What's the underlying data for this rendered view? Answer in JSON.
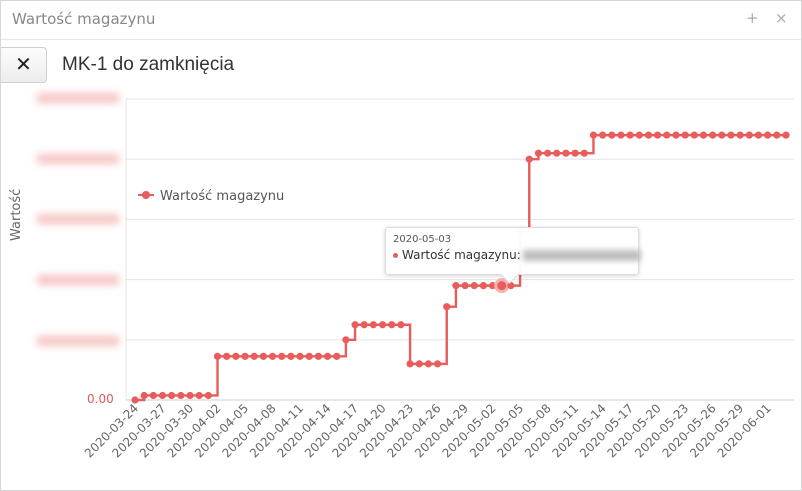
{
  "window": {
    "title": "Wartość magazynu",
    "maximize_icon": "+",
    "close_icon": "×"
  },
  "toolbar": {
    "close_label": "✕",
    "report_title": "MK-1 do zamknięcia"
  },
  "tooltip": {
    "date": "2020-05-03",
    "label": "Wartość magazynu:"
  },
  "colors": {
    "series": "#e85c5c",
    "grid": "#e5e5e5"
  },
  "chart_data": {
    "type": "line",
    "step": true,
    "title": "",
    "xlabel": "",
    "ylabel": "Wartość",
    "legend": {
      "entry": "Wartość magazynu",
      "placement": "left-middle"
    },
    "y_tick_labels": [
      "0.00"
    ],
    "x_tick_labels": [
      "2020-03-24",
      "2020-03-27",
      "2020-03-30",
      "2020-04-02",
      "2020-04-05",
      "2020-04-08",
      "2020-04-11",
      "2020-04-14",
      "2020-04-17",
      "2020-04-20",
      "2020-04-23",
      "2020-04-26",
      "2020-04-29",
      "2020-05-02",
      "2020-05-05",
      "2020-05-08",
      "2020-05-11",
      "2020-05-14",
      "2020-05-17",
      "2020-05-20",
      "2020-05-23",
      "2020-05-26",
      "2020-05-29",
      "2020-06-01"
    ],
    "ylim": [
      0,
      1000
    ],
    "grid": true,
    "series": [
      {
        "name": "Wartość magazynu",
        "x": [
          "2020-03-24",
          "2020-03-25",
          "2020-03-26",
          "2020-03-27",
          "2020-03-28",
          "2020-03-29",
          "2020-03-30",
          "2020-03-31",
          "2020-04-01",
          "2020-04-02",
          "2020-04-03",
          "2020-04-04",
          "2020-04-05",
          "2020-04-06",
          "2020-04-07",
          "2020-04-08",
          "2020-04-09",
          "2020-04-10",
          "2020-04-11",
          "2020-04-12",
          "2020-04-13",
          "2020-04-14",
          "2020-04-15",
          "2020-04-16",
          "2020-04-17",
          "2020-04-18",
          "2020-04-19",
          "2020-04-20",
          "2020-04-21",
          "2020-04-22",
          "2020-04-23",
          "2020-04-24",
          "2020-04-25",
          "2020-04-26",
          "2020-04-27",
          "2020-04-28",
          "2020-04-29",
          "2020-04-30",
          "2020-05-01",
          "2020-05-02",
          "2020-05-03",
          "2020-05-04",
          "2020-05-05",
          "2020-05-06",
          "2020-05-07",
          "2020-05-08",
          "2020-05-09",
          "2020-05-10",
          "2020-05-11",
          "2020-05-12",
          "2020-05-13",
          "2020-05-14",
          "2020-05-15",
          "2020-05-16",
          "2020-05-17",
          "2020-05-18",
          "2020-05-19",
          "2020-05-20",
          "2020-05-21",
          "2020-05-22",
          "2020-05-23",
          "2020-05-24",
          "2020-05-25",
          "2020-05-26",
          "2020-05-27",
          "2020-05-28",
          "2020-05-29",
          "2020-05-30",
          "2020-05-31",
          "2020-06-01",
          "2020-06-02",
          "2020-06-03"
        ],
        "values": [
          0,
          15,
          15,
          15,
          15,
          15,
          15,
          15,
          15,
          145,
          145,
          145,
          145,
          145,
          145,
          145,
          145,
          145,
          145,
          145,
          145,
          145,
          145,
          200,
          250,
          250,
          250,
          250,
          250,
          250,
          120,
          120,
          120,
          120,
          310,
          380,
          380,
          380,
          380,
          380,
          380,
          380,
          560,
          800,
          820,
          820,
          820,
          820,
          820,
          820,
          880,
          880,
          880,
          880,
          880,
          880,
          880,
          880,
          880,
          880,
          880,
          880,
          880,
          880,
          880,
          880,
          880,
          880,
          880,
          880,
          880,
          880
        ]
      }
    ]
  }
}
